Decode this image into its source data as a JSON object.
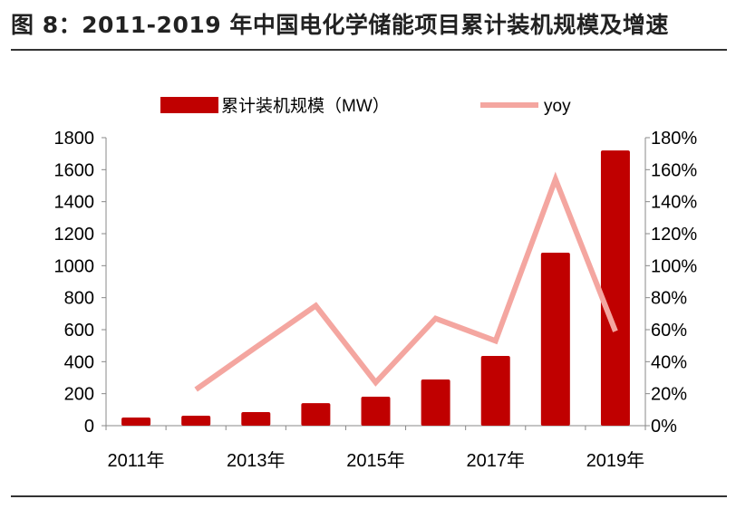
{
  "title": "图 8：2011-2019 年中国电化学储能项目累计装机规模及增速",
  "chart_data": {
    "type": "bar+line",
    "title": "图 8：2011-2019 年中国电化学储能项目累计装机规模及增速",
    "categories": [
      "2011年",
      "2012年",
      "2013年",
      "2014年",
      "2015年",
      "2016年",
      "2017年",
      "2018年",
      "2019年"
    ],
    "x_tick_labels": [
      "2011年",
      "",
      "2013年",
      "",
      "2015年",
      "",
      "2017年",
      "",
      "2019年"
    ],
    "series": [
      {
        "name": "累计装机规模（MW）",
        "type": "bar",
        "axis": "left",
        "color": "#C00000",
        "values": [
          51,
          62,
          85,
          141,
          181,
          289,
          436,
          1081,
          1720
        ]
      },
      {
        "name": "yoy",
        "type": "line",
        "axis": "right",
        "color": "#F4A6A0",
        "values": [
          null,
          22.6,
          49,
          75,
          27,
          67,
          53,
          154,
          59
        ]
      }
    ],
    "left_axis": {
      "ylim": [
        0,
        1800
      ],
      "ticks": [
        "0",
        "200",
        "400",
        "600",
        "800",
        "1000",
        "1200",
        "1400",
        "1600",
        "1800"
      ]
    },
    "right_axis": {
      "ylim": [
        0,
        180
      ],
      "unit": "%",
      "ticks": [
        "0%",
        "20%",
        "40%",
        "60%",
        "80%",
        "100%",
        "120%",
        "140%",
        "160%",
        "180%"
      ]
    },
    "legend": {
      "placement": "top",
      "entries": [
        "累计装机规模（MW）",
        "yoy"
      ]
    },
    "grid": false
  }
}
